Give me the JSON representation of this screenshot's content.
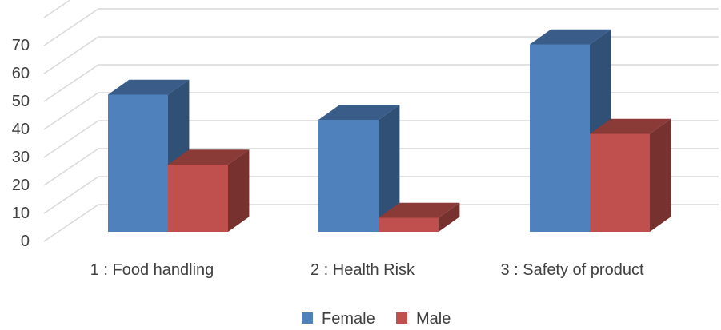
{
  "chart_data": {
    "type": "bar",
    "categories": [
      "1 : Food handling",
      "2 : Health Risk",
      "3 : Safety of product"
    ],
    "series": [
      {
        "name": "Female",
        "values": [
          49,
          40,
          67
        ],
        "color": "#4f81bd"
      },
      {
        "name": "Male",
        "values": [
          24,
          5,
          35
        ],
        "color": "#c0504d"
      }
    ],
    "ylim": [
      0,
      80
    ],
    "yticks": [
      0,
      10,
      20,
      30,
      40,
      50,
      60,
      70
    ],
    "tick_labels": [
      "0",
      "10",
      "20",
      "30",
      "40",
      "50",
      "60",
      "70"
    ],
    "grid": true,
    "style": "3d-clustered-column",
    "legend_position": "bottom"
  }
}
